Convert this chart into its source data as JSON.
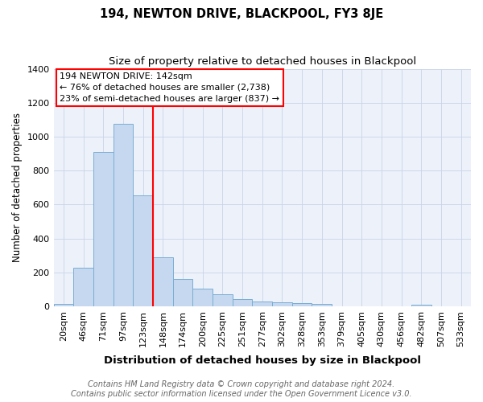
{
  "title": "194, NEWTON DRIVE, BLACKPOOL, FY3 8JE",
  "subtitle": "Size of property relative to detached houses in Blackpool",
  "xlabel": "Distribution of detached houses by size in Blackpool",
  "ylabel": "Number of detached properties",
  "categories": [
    "20sqm",
    "46sqm",
    "71sqm",
    "97sqm",
    "123sqm",
    "148sqm",
    "174sqm",
    "200sqm",
    "225sqm",
    "251sqm",
    "277sqm",
    "302sqm",
    "328sqm",
    "353sqm",
    "379sqm",
    "405sqm",
    "430sqm",
    "456sqm",
    "482sqm",
    "507sqm",
    "533sqm"
  ],
  "values": [
    15,
    225,
    910,
    1075,
    655,
    290,
    160,
    105,
    70,
    40,
    28,
    22,
    18,
    12,
    0,
    0,
    0,
    0,
    10,
    0,
    0
  ],
  "bar_color": "#c5d8ef",
  "bar_edgecolor": "#7aadd4",
  "vline_x_idx": 4.5,
  "vline_color": "red",
  "annotation_lines": [
    "194 NEWTON DRIVE: 142sqm",
    "← 76% of detached houses are smaller (2,738)",
    "23% of semi-detached houses are larger (837) →"
  ],
  "ylim": [
    0,
    1400
  ],
  "yticks": [
    0,
    200,
    400,
    600,
    800,
    1000,
    1200,
    1400
  ],
  "footer_line1": "Contains HM Land Registry data © Crown copyright and database right 2024.",
  "footer_line2": "Contains public sector information licensed under the Open Government Licence v3.0.",
  "plot_bg_color": "#edf2fa",
  "title_fontsize": 10.5,
  "subtitle_fontsize": 9.5,
  "xlabel_fontsize": 9.5,
  "ylabel_fontsize": 8.5,
  "tick_fontsize": 8,
  "annotation_fontsize": 8,
  "footer_fontsize": 7
}
